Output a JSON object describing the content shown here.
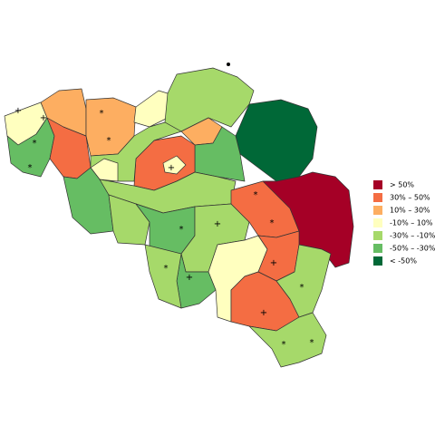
{
  "legend": {
    "items": [
      {
        "label": "> 50%",
        "color": "#a50026"
      },
      {
        "label": "30% – 50%",
        "color": "#f46d43"
      },
      {
        "label": "10% – 30%",
        "color": "#fdae61"
      },
      {
        "label": "-10% – 10%",
        "color": "#ffffbf"
      },
      {
        "label": "-30% – -10%",
        "color": "#a6d96a"
      },
      {
        "label": "-50% – -30%",
        "color": "#66bd63"
      },
      {
        "label": "< -50%",
        "color": "#006837"
      }
    ]
  }
}
